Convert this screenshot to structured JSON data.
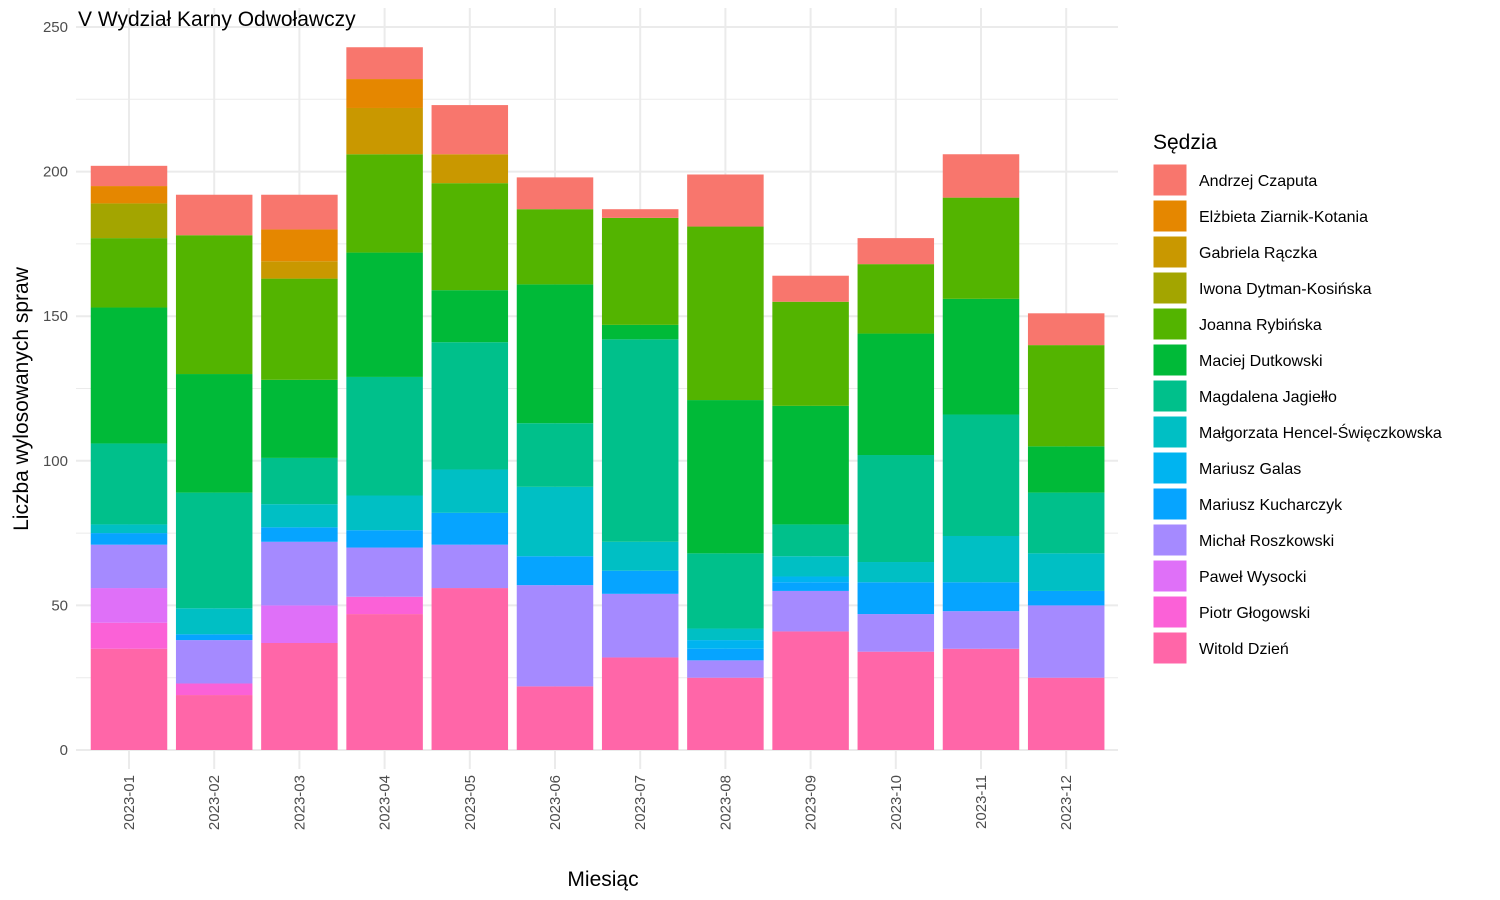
{
  "chart_data": {
    "type": "bar",
    "stacked": true,
    "title": "V Wydział Karny Odwoławczy",
    "xlabel": "Miesiąc",
    "ylabel": "Liczba wylosowanych spraw",
    "ylim": [
      0,
      250
    ],
    "yticks": [
      0,
      50,
      100,
      150,
      200,
      250
    ],
    "grid": true,
    "legend_title": "Sędzia",
    "legend_position": "right",
    "categories": [
      "2023-01",
      "2023-02",
      "2023-03",
      "2023-04",
      "2023-05",
      "2023-06",
      "2023-07",
      "2023-08",
      "2023-09",
      "2023-10",
      "2023-11",
      "2023-12"
    ],
    "series": [
      {
        "name": "Andrzej Czaputa",
        "color": "#F8766D",
        "values": [
          7,
          14,
          12,
          11,
          17,
          11,
          3,
          18,
          9,
          9,
          15,
          11
        ]
      },
      {
        "name": "Elżbieta Ziarnik-Kotania",
        "color": "#E58700",
        "values": [
          6,
          0,
          11,
          10,
          0,
          0,
          0,
          0,
          0,
          0,
          0,
          0
        ]
      },
      {
        "name": "Gabriela Rączka",
        "color": "#C99800",
        "values": [
          0,
          0,
          6,
          16,
          10,
          0,
          0,
          0,
          0,
          0,
          0,
          0
        ]
      },
      {
        "name": "Iwona Dytman-Kosińska",
        "color": "#A3A500",
        "values": [
          12,
          0,
          0,
          0,
          0,
          0,
          0,
          0,
          0,
          0,
          0,
          0
        ]
      },
      {
        "name": "Joanna Rybińska",
        "color": "#53B400",
        "values": [
          24,
          48,
          35,
          34,
          37,
          26,
          37,
          60,
          36,
          24,
          35,
          35
        ]
      },
      {
        "name": "Maciej Dutkowski",
        "color": "#00BA38",
        "values": [
          47,
          41,
          27,
          43,
          18,
          48,
          5,
          53,
          41,
          42,
          40,
          16
        ]
      },
      {
        "name": "Magdalena Jagiełło",
        "color": "#00C08B",
        "values": [
          28,
          40,
          16,
          41,
          44,
          22,
          70,
          26,
          11,
          37,
          42,
          21
        ]
      },
      {
        "name": "Małgorzata Hencel-Święczkowska",
        "color": "#00BFC4",
        "values": [
          3,
          9,
          8,
          12,
          15,
          24,
          10,
          4,
          7,
          7,
          16,
          13
        ]
      },
      {
        "name": "Mariusz Galas",
        "color": "#00B4F0",
        "values": [
          0,
          0,
          0,
          0,
          0,
          0,
          0,
          3,
          2,
          0,
          0,
          0
        ]
      },
      {
        "name": "Mariusz Kucharczyk",
        "color": "#06A4FF",
        "values": [
          4,
          2,
          5,
          6,
          11,
          10,
          8,
          4,
          3,
          11,
          10,
          5
        ]
      },
      {
        "name": "Michał Roszkowski",
        "color": "#A58AFF",
        "values": [
          15,
          15,
          22,
          17,
          15,
          35,
          22,
          6,
          14,
          13,
          13,
          25
        ]
      },
      {
        "name": "Paweł Wysocki",
        "color": "#DF70F8",
        "values": [
          12,
          0,
          13,
          0,
          0,
          0,
          0,
          0,
          0,
          0,
          0,
          0
        ]
      },
      {
        "name": "Piotr Głogowski",
        "color": "#FB61D7",
        "values": [
          9,
          4,
          0,
          6,
          0,
          0,
          0,
          0,
          0,
          0,
          0,
          0
        ]
      },
      {
        "name": "Witold Dzień",
        "color": "#FF66A8",
        "values": [
          35,
          19,
          37,
          47,
          56,
          22,
          32,
          25,
          41,
          34,
          35,
          25
        ]
      }
    ]
  }
}
